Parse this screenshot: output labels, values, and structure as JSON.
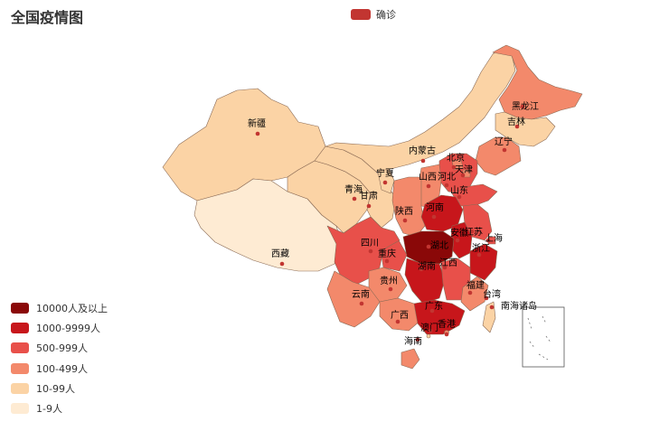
{
  "title": "全国疫情图",
  "legend": {
    "label": "确诊",
    "color": "#c23531"
  },
  "visual_map": [
    {
      "label": "10000人及以上",
      "color": "#8a0808"
    },
    {
      "label": "1000-9999人",
      "color": "#c7161b"
    },
    {
      "label": "500-999人",
      "color": "#e8504a"
    },
    {
      "label": "100-499人",
      "color": "#f3896b"
    },
    {
      "label": "10-99人",
      "color": "#fbd3a5"
    },
    {
      "label": "1-9人",
      "color": "#feebd3"
    }
  ],
  "provinces": [
    {
      "name": "新疆"
    },
    {
      "name": "西藏"
    },
    {
      "name": "青海"
    },
    {
      "name": "甘肃"
    },
    {
      "name": "宁夏"
    },
    {
      "name": "内蒙古"
    },
    {
      "name": "黑龙江"
    },
    {
      "name": "吉林"
    },
    {
      "name": "辽宁"
    },
    {
      "name": "北京"
    },
    {
      "name": "天津"
    },
    {
      "name": "河北"
    },
    {
      "name": "山西"
    },
    {
      "name": "山东"
    },
    {
      "name": "河南"
    },
    {
      "name": "陕西"
    },
    {
      "name": "四川"
    },
    {
      "name": "重庆"
    },
    {
      "name": "湖北"
    },
    {
      "name": "安徽"
    },
    {
      "name": "江苏"
    },
    {
      "name": "上海"
    },
    {
      "name": "浙江"
    },
    {
      "name": "江西"
    },
    {
      "name": "湖南"
    },
    {
      "name": "贵州"
    },
    {
      "name": "云南"
    },
    {
      "name": "福建"
    },
    {
      "name": "台湾"
    },
    {
      "name": "广西"
    },
    {
      "name": "广东"
    },
    {
      "name": "澳门"
    },
    {
      "name": "香港"
    },
    {
      "name": "海南"
    },
    {
      "name": "南海诸岛"
    }
  ]
}
